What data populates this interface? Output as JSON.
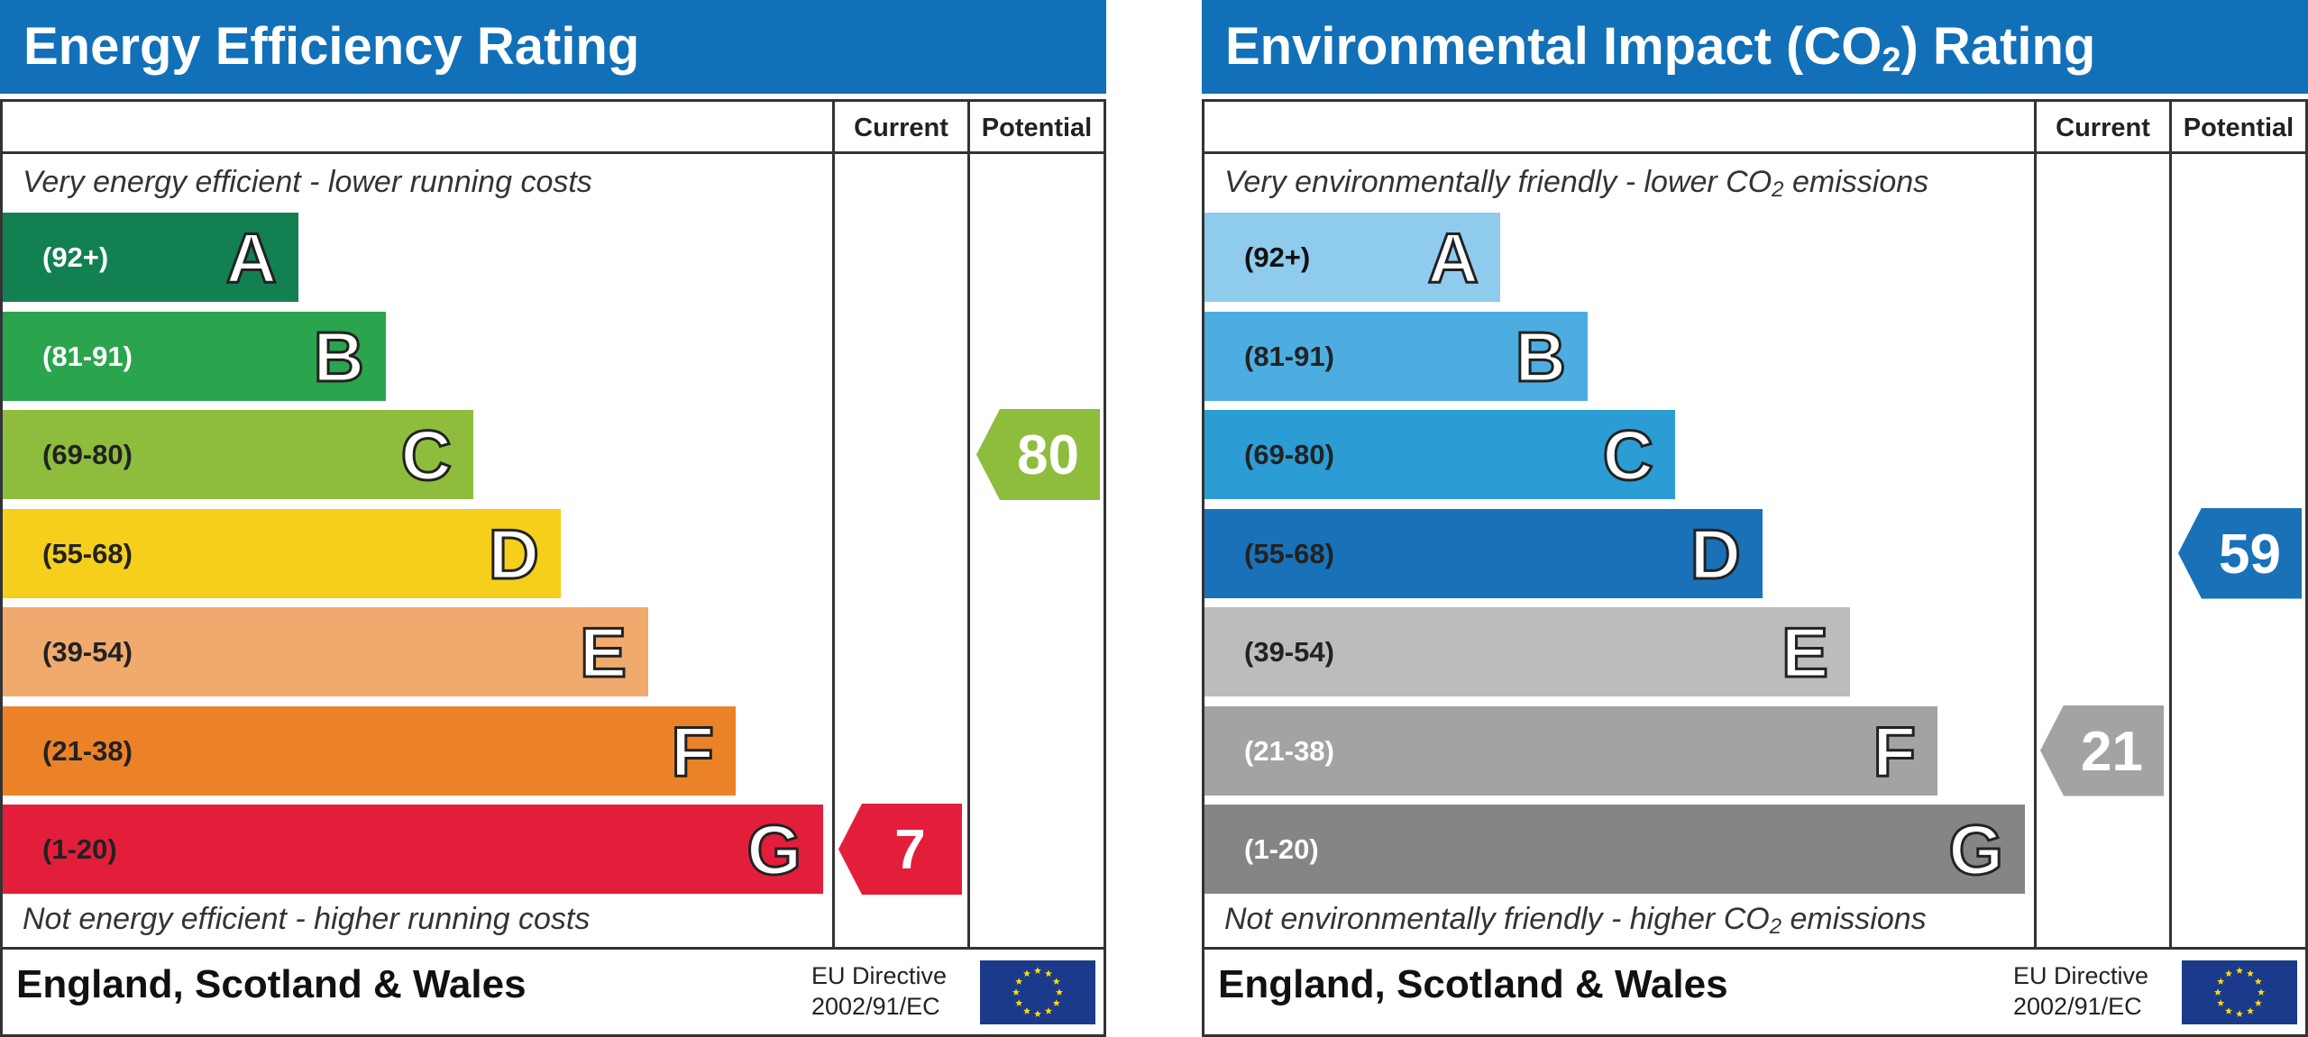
{
  "chart_data": [
    {
      "type": "bar",
      "title": "Energy Efficiency Rating",
      "columns": [
        "Current",
        "Potential"
      ],
      "top_caption": "Very energy efficient - lower running costs",
      "bottom_caption": "Not energy efficient - higher running costs",
      "bands": [
        {
          "letter": "A",
          "range": "(92+)",
          "color": "#138052",
          "text_color": "#ffffff"
        },
        {
          "letter": "B",
          "range": "(81-91)",
          "color": "#2ba44e",
          "text_color": "#ffffff"
        },
        {
          "letter": "C",
          "range": "(69-80)",
          "color": "#8ebd3e",
          "text_color": "#222222"
        },
        {
          "letter": "D",
          "range": "(55-68)",
          "color": "#f5cf1c",
          "text_color": "#222222"
        },
        {
          "letter": "E",
          "range": "(39-54)",
          "color": "#f0aa6e",
          "text_color": "#222222"
        },
        {
          "letter": "F",
          "range": "(21-38)",
          "color": "#ec8227",
          "text_color": "#222222"
        },
        {
          "letter": "G",
          "range": "(1-20)",
          "color": "#e31e3b",
          "text_color": "#222222"
        }
      ],
      "current": {
        "value": 7,
        "band": "G",
        "color": "#e31e3b"
      },
      "potential": {
        "value": 80,
        "band": "C",
        "color": "#8ebd3e"
      }
    },
    {
      "type": "bar",
      "title_main": "Environmental Impact (CO",
      "title_sub": "2",
      "title_end": ") Rating",
      "columns": [
        "Current",
        "Potential"
      ],
      "top_caption_main": "Very environmentally friendly - lower CO",
      "top_caption_sub": "2",
      "top_caption_end": " emissions",
      "bottom_caption_main": "Not environmentally friendly - higher CO",
      "bottom_caption_sub": "2",
      "bottom_caption_end": " emissions",
      "bands": [
        {
          "letter": "A",
          "range": "(92+)",
          "color": "#8fcbec",
          "text_color": "#111111"
        },
        {
          "letter": "B",
          "range": "(81-91)",
          "color": "#4dade1",
          "text_color": "#222222"
        },
        {
          "letter": "C",
          "range": "(69-80)",
          "color": "#2c9dd4",
          "text_color": "#222222"
        },
        {
          "letter": "D",
          "range": "(55-68)",
          "color": "#1971b8",
          "text_color": "#222222"
        },
        {
          "letter": "E",
          "range": "(39-54)",
          "color": "#bcbcbc",
          "text_color": "#222222"
        },
        {
          "letter": "F",
          "range": "(21-38)",
          "color": "#a3a3a3",
          "text_color": "#ffffff"
        },
        {
          "letter": "G",
          "range": "(1-20)",
          "color": "#858585",
          "text_color": "#ffffff"
        }
      ],
      "current": {
        "value": 21,
        "band": "F",
        "color": "#a3a3a3"
      },
      "potential": {
        "value": 59,
        "band": "D",
        "color": "#1971b8"
      }
    }
  ],
  "footer": {
    "region": "England, Scotland & Wales",
    "eu_line1": "EU Directive",
    "eu_line2": "2002/91/EC"
  },
  "colors": {
    "header": "#1170b7",
    "eu_flag": "#1b3a8c",
    "eu_stars": "#ffdd00"
  }
}
